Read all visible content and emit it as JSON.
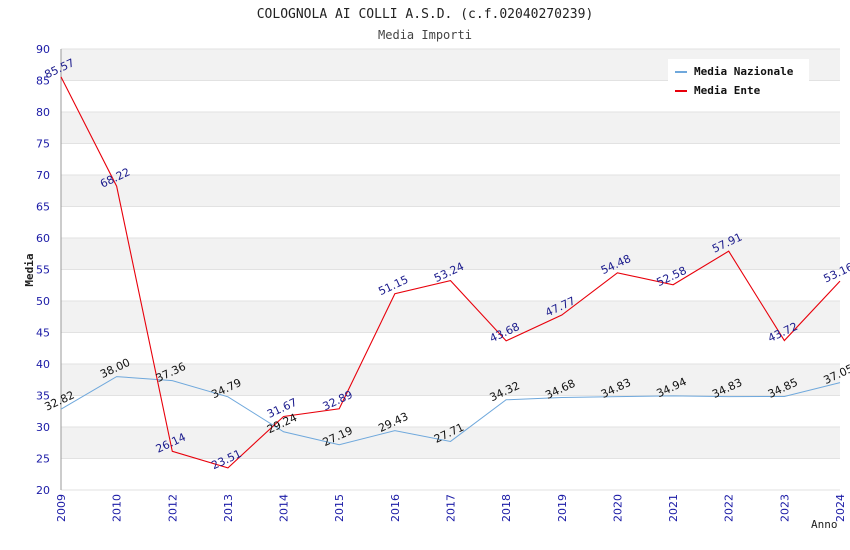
{
  "chart_data": {
    "type": "line",
    "title": "COLOGNOLA AI COLLI A.S.D. (c.f.02040270239)",
    "subtitle": "Media Importi",
    "ylabel": "Media",
    "xlabel": "Anno",
    "ylim": [
      20,
      90
    ],
    "yticks": [
      20,
      25,
      30,
      35,
      40,
      45,
      50,
      55,
      60,
      65,
      70,
      75,
      80,
      85,
      90
    ],
    "categories": [
      "2009",
      "2010",
      "2012",
      "2013",
      "2014",
      "2015",
      "2016",
      "2017",
      "2018",
      "2019",
      "2020",
      "2021",
      "2022",
      "2023",
      "2024"
    ],
    "series": [
      {
        "name": "Media Nazionale",
        "color": "#6fa8dc",
        "values": [
          32.82,
          38.0,
          37.36,
          34.79,
          29.24,
          27.19,
          29.43,
          27.71,
          34.32,
          34.68,
          34.83,
          34.94,
          34.83,
          34.85,
          37.05
        ],
        "labels": [
          "32.82",
          "38.00",
          "37.36",
          "34.79",
          "29.24",
          "27.19",
          "29.43",
          "27.71",
          "34.32",
          "34.68",
          "34.83",
          "34.94",
          "34.83",
          "34.85",
          "37.05"
        ]
      },
      {
        "name": "Media Ente",
        "color": "#e8000b",
        "values": [
          85.57,
          68.22,
          26.14,
          23.51,
          31.67,
          32.89,
          51.15,
          53.24,
          43.68,
          47.77,
          54.48,
          52.58,
          57.91,
          43.72,
          53.16
        ],
        "labels": [
          "85.57",
          "68.22",
          "26.14",
          "23.51",
          "31.67",
          "32.89",
          "51.15",
          "53.24",
          "43.68",
          "47.77",
          "54.48",
          "52.58",
          "57.91",
          "43.72",
          "53.16"
        ]
      }
    ],
    "grid": true,
    "legend": "top-right"
  }
}
